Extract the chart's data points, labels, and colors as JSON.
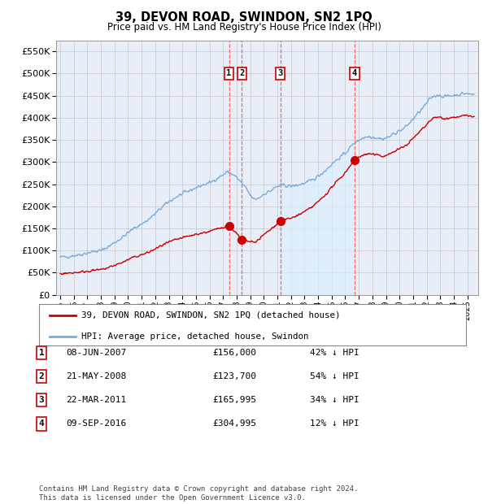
{
  "title": "39, DEVON ROAD, SWINDON, SN2 1PQ",
  "subtitle": "Price paid vs. HM Land Registry's House Price Index (HPI)",
  "ylim": [
    0,
    575000
  ],
  "ytick_values": [
    0,
    50000,
    100000,
    150000,
    200000,
    250000,
    300000,
    350000,
    400000,
    450000,
    500000,
    550000
  ],
  "sale_dates": [
    2007.44,
    2008.39,
    2011.22,
    2016.69
  ],
  "sale_prices": [
    156000,
    123700,
    165995,
    304995
  ],
  "sale_labels": [
    "1",
    "2",
    "3",
    "4"
  ],
  "red_line_color": "#cc0000",
  "blue_line_color": "#7aacdc",
  "shade_color": "#ddeeff",
  "grid_color": "#cccccc",
  "vline_color": "#ff5555",
  "legend_entries": [
    "39, DEVON ROAD, SWINDON, SN2 1PQ (detached house)",
    "HPI: Average price, detached house, Swindon"
  ],
  "table_rows": [
    [
      "1",
      "08-JUN-2007",
      "£156,000",
      "42% ↓ HPI"
    ],
    [
      "2",
      "21-MAY-2008",
      "£123,700",
      "54% ↓ HPI"
    ],
    [
      "3",
      "22-MAR-2011",
      "£165,995",
      "34% ↓ HPI"
    ],
    [
      "4",
      "09-SEP-2016",
      "£304,995",
      "12% ↓ HPI"
    ]
  ],
  "footnote": "Contains HM Land Registry data © Crown copyright and database right 2024.\nThis data is licensed under the Open Government Licence v3.0.",
  "background_color": "#e8eef8"
}
